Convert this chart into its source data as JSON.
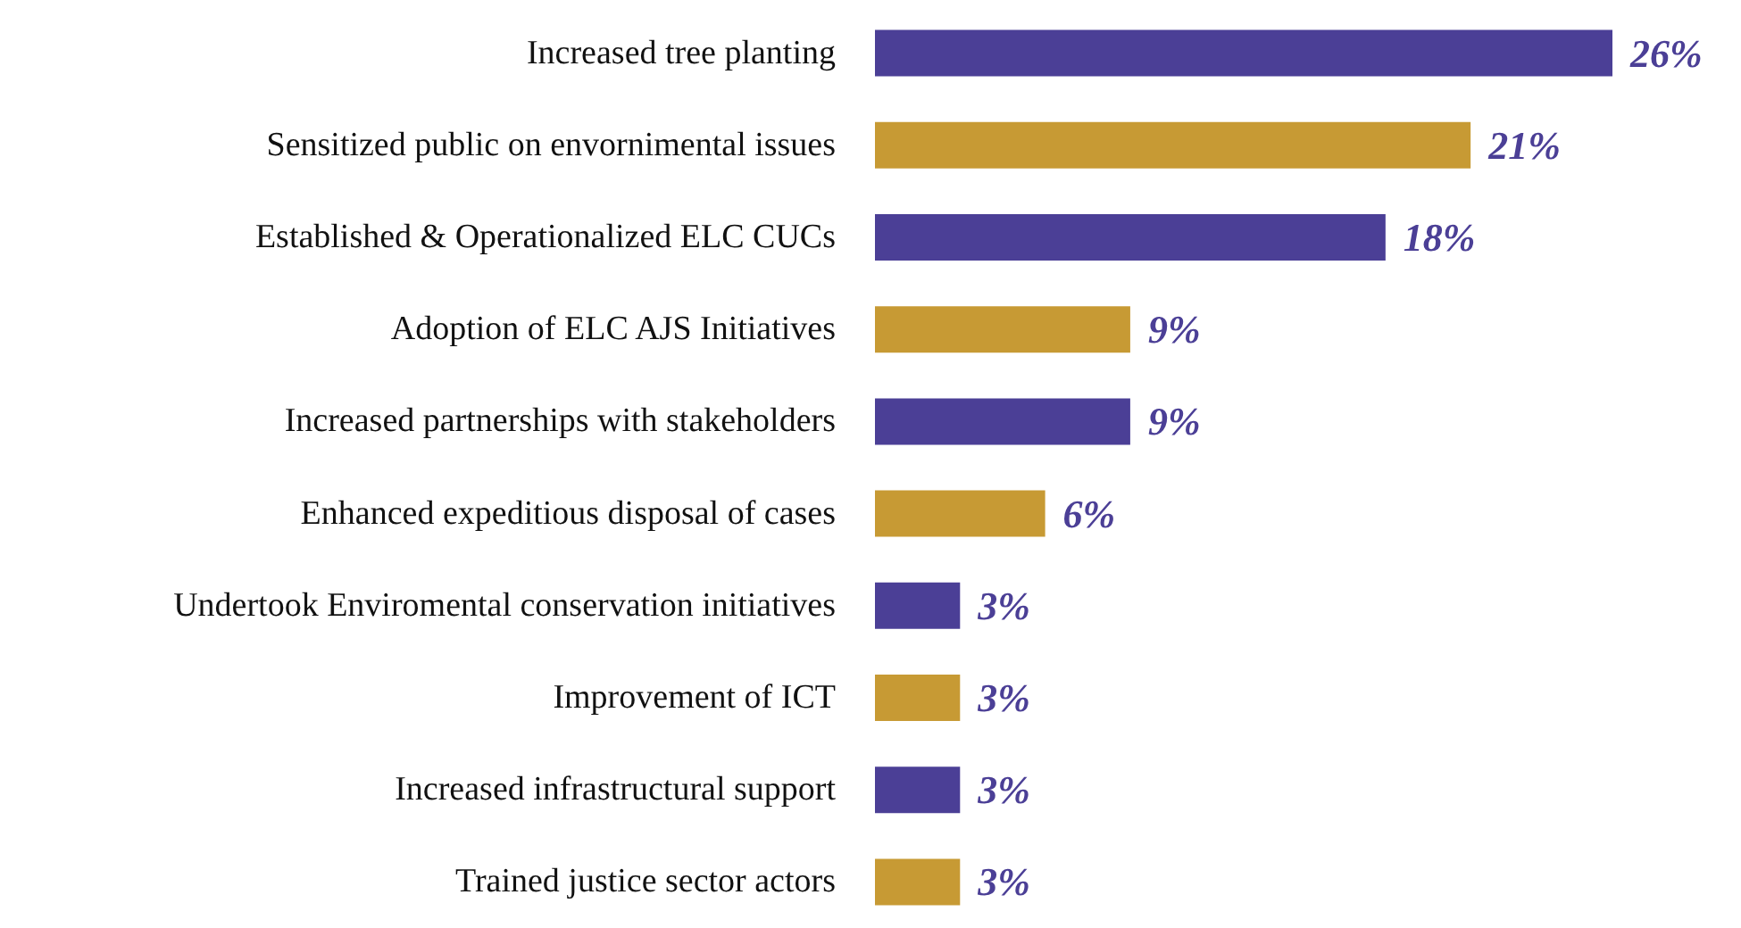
{
  "chart_data": {
    "type": "bar",
    "orientation": "horizontal",
    "categories": [
      "Increased tree planting",
      "Sensitized public on envornimental issues",
      "Established & Operationalized ELC CUCs",
      "Adoption of ELC AJS Initiatives",
      "Increased partnerships with stakeholders",
      "Enhanced expeditious disposal of cases",
      "Undertook Enviromental conservation initiatives",
      "Improvement of ICT",
      "Increased infrastructural support",
      "Trained justice sector actors"
    ],
    "values": [
      26,
      21,
      18,
      9,
      9,
      6,
      3,
      3,
      3,
      3
    ],
    "colors": [
      "#4b3f96",
      "#c79a34",
      "#4b3f96",
      "#c79a34",
      "#4b3f96",
      "#c79a34",
      "#4b3f96",
      "#c79a34",
      "#4b3f96",
      "#c79a34"
    ],
    "value_labels": [
      "26%",
      "21%",
      "18%",
      "9%",
      "9%",
      "6%",
      "3%",
      "3%",
      "3%",
      "3%"
    ]
  }
}
